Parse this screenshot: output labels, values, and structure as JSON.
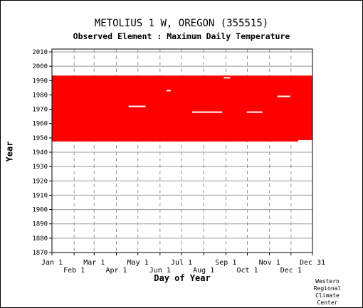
{
  "title": "METOLIUS 1 W, OREGON   (355515)",
  "subtitle": "Observed Element : Maximum Daily Temperature",
  "credit": [
    "Western",
    "Regional",
    "Climate",
    "Center"
  ],
  "colors": {
    "data": "#ff0000",
    "grid": "#999999",
    "axis": "#000000",
    "background": "#ffffff"
  },
  "chart_data": {
    "type": "scatter",
    "xlabel": "Day of Year",
    "ylabel": "Year",
    "xlim": [
      1,
      365
    ],
    "ylim": [
      1870,
      2012
    ],
    "x_ticks_row1": [
      {
        "label": "Jan 1",
        "day": 1
      },
      {
        "label": "Mar 1",
        "day": 60
      },
      {
        "label": "May 1",
        "day": 121
      },
      {
        "label": "Jul 1",
        "day": 182
      },
      {
        "label": "Sep 1",
        "day": 244
      },
      {
        "label": "Nov 1",
        "day": 305
      },
      {
        "label": "Dec 31",
        "day": 365
      }
    ],
    "x_ticks_row2": [
      {
        "label": "Feb 1",
        "day": 32
      },
      {
        "label": "Apr 1",
        "day": 91
      },
      {
        "label": "Jun 1",
        "day": 152
      },
      {
        "label": "Aug 1",
        "day": 213
      },
      {
        "label": "Oct 1",
        "day": 274
      },
      {
        "label": "Dec 1",
        "day": 335
      }
    ],
    "y_ticks": [
      "1870",
      "1880",
      "1890",
      "1900",
      "1910",
      "1920",
      "1930",
      "1940",
      "1950",
      "1960",
      "1970",
      "1980",
      "1990",
      "2000",
      "2010"
    ],
    "grid": true,
    "series": [
      {
        "style": "filled_band",
        "year_start": 1948,
        "year_end": 1993,
        "gaps": [
          {
            "day_start": 108,
            "day_end": 132,
            "year": 1972
          },
          {
            "day_start": 161,
            "day_end": 167,
            "year": 1983
          },
          {
            "day_start": 197,
            "day_end": 239,
            "year": 1968
          },
          {
            "day_start": 273,
            "day_end": 295,
            "year": 1968
          },
          {
            "day_start": 316,
            "day_end": 334,
            "year": 1979
          },
          {
            "day_start": 241,
            "day_end": 250,
            "year": 1992
          },
          {
            "day_start": 345,
            "day_end": 365,
            "year": 1948
          }
        ]
      }
    ]
  }
}
